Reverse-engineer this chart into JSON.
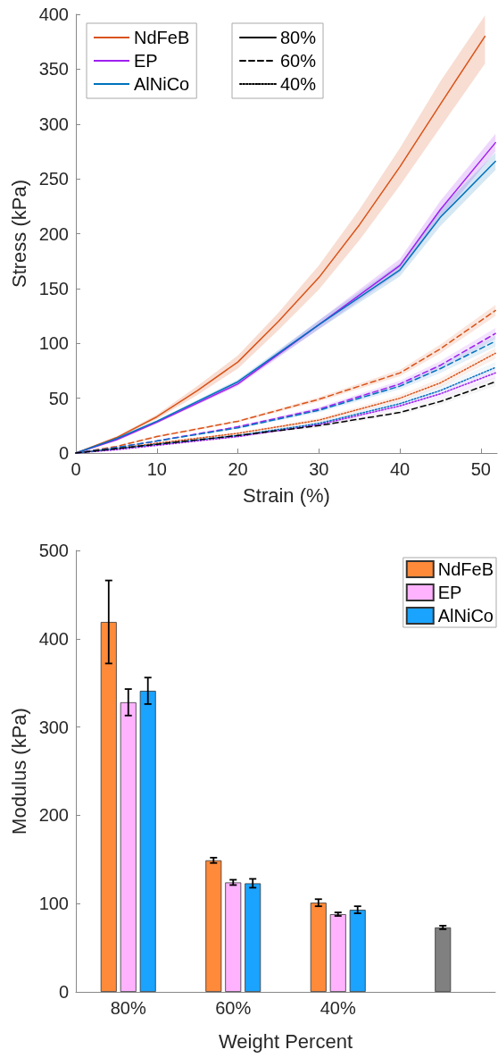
{
  "chart_data": [
    {
      "type": "line",
      "xlabel": "Strain (%)",
      "ylabel": "Stress (kPa)",
      "xlim": [
        0,
        52
      ],
      "xticks": [
        0,
        10,
        20,
        30,
        40,
        50
      ],
      "ylim": [
        0,
        400
      ],
      "yticks": [
        0,
        50,
        100,
        150,
        200,
        250,
        300,
        350,
        400
      ],
      "grid": false,
      "legend": "top left",
      "marker": "none",
      "x": [
        0,
        5,
        10,
        20,
        30,
        40,
        45,
        51.8
      ],
      "series": [
        {
          "name": "NdFeB",
          "color": "#d95319",
          "line_style": "solid",
          "x": [
            0,
            5,
            10,
            15,
            20,
            25,
            30,
            35,
            40,
            45,
            50.5
          ],
          "values": [
            0,
            14,
            33,
            57,
            83,
            120,
            160,
            208,
            261,
            318,
            380
          ],
          "lower": [
            0,
            13,
            31,
            53,
            77,
            112,
            149,
            194,
            244,
            297,
            355
          ],
          "upper": [
            0,
            15,
            35,
            61,
            89,
            128,
            171,
            222,
            278,
            339,
            399
          ]
        },
        {
          "name": "EP",
          "color": "#a020f0",
          "line_style": "solid",
          "values": [
            0,
            12,
            28,
            63,
            117,
            171,
            222,
            283
          ],
          "lower": [
            0,
            11,
            27,
            61,
            113,
            165,
            214,
            275
          ],
          "upper": [
            0,
            13,
            29,
            65,
            121,
            177,
            230,
            291
          ]
        },
        {
          "name": "AlNiCo",
          "color": "#0072bd",
          "line_style": "solid",
          "values": [
            0,
            13,
            29,
            65,
            117,
            167,
            215,
            266
          ],
          "lower": [
            0,
            12,
            28,
            63,
            113,
            161,
            207,
            258
          ],
          "upper": [
            0,
            14,
            30,
            67,
            121,
            173,
            223,
            274
          ]
        },
        {
          "color": "#d95319",
          "line_style": "dashed",
          "values": [
            0,
            6,
            15,
            29,
            49,
            73,
            95,
            130
          ],
          "lower": [
            0,
            5.5,
            14,
            28,
            47,
            70,
            91,
            125
          ],
          "upper": [
            0,
            6.5,
            16,
            30,
            51,
            76,
            99,
            135
          ]
        },
        {
          "color": "#a020f0",
          "line_style": "dashed",
          "values": [
            0,
            5,
            11,
            24,
            40,
            63,
            80,
            109
          ],
          "lower": [
            0,
            4.5,
            10.5,
            22.6,
            38,
            60,
            76,
            104
          ],
          "upper": [
            0,
            5.5,
            11.5,
            24.6,
            42,
            66,
            84,
            114
          ]
        },
        {
          "color": "#0072bd",
          "line_style": "dashed",
          "values": [
            0,
            5,
            11,
            23,
            39,
            61,
            77,
            102
          ],
          "lower": [
            0,
            4.5,
            10.5,
            22,
            37,
            58,
            73,
            97
          ],
          "upper": [
            0,
            5.5,
            11.5,
            24,
            41,
            64,
            81,
            107
          ]
        },
        {
          "color": "#d95319",
          "line_style": "dotted",
          "values": [
            0,
            4,
            9,
            18,
            30,
            50,
            64,
            91
          ],
          "lower": [
            0,
            3.5,
            8.5,
            17,
            28,
            47,
            60,
            86
          ],
          "upper": [
            0,
            4.5,
            9.5,
            19,
            32,
            53,
            68,
            96
          ]
        },
        {
          "color": "#a020f0",
          "line_style": "dotted",
          "values": [
            0,
            3,
            7,
            15,
            26,
            43,
            54,
            73
          ],
          "lower": [
            0,
            3,
            7,
            14,
            24,
            40,
            50,
            68
          ],
          "upper": [
            0,
            4,
            8,
            16,
            28,
            46,
            58,
            78
          ]
        },
        {
          "color": "#0072bd",
          "line_style": "dotted",
          "values": [
            0,
            4,
            8,
            16,
            27,
            45,
            57,
            78
          ],
          "lower": [
            0,
            3.5,
            7.5,
            15,
            25,
            42,
            53,
            73
          ],
          "upper": [
            0,
            4.5,
            8.5,
            17,
            29,
            48,
            61,
            83
          ]
        },
        {
          "color": "#000000",
          "line_style": "dashed",
          "values": [
            0,
            4,
            8,
            16,
            25,
            37,
            47,
            65
          ],
          "lower": [
            0,
            3.5,
            7.5,
            15,
            23,
            35,
            44,
            61
          ],
          "upper": [
            0,
            4.5,
            8.5,
            17,
            27,
            39,
            50,
            69
          ]
        },
        {
          "name": "80%",
          "color": "#000000",
          "line_style": "solid",
          "values": [
            null,
            null,
            null,
            null,
            null,
            null,
            null,
            null
          ]
        },
        {
          "name": "60%",
          "color": "#000000",
          "line_style": "dashed",
          "values": [
            null,
            null,
            null,
            null,
            null,
            null,
            null,
            null
          ]
        },
        {
          "name": "40%",
          "color": "#000000",
          "line_style": "dotted",
          "values": [
            null,
            null,
            null,
            null,
            null,
            null,
            null,
            null
          ]
        }
      ]
    },
    {
      "type": "bar",
      "xlabel": "Weight Percent",
      "ylabel": "Modulus (kPa)",
      "categories": [
        "80%",
        "60%",
        "40%",
        null
      ],
      "ylim": [
        0,
        500
      ],
      "yticks": [
        0,
        100,
        200,
        300,
        400,
        500
      ],
      "grid": false,
      "legend": "top right",
      "series": [
        {
          "name": "NdFeB",
          "color": "#ff8a3a",
          "values": [
            419,
            149,
            101,
            null
          ],
          "errors": [
            47,
            3,
            4,
            null
          ]
        },
        {
          "name": "EP",
          "color": "#ffb3ff",
          "values": [
            328,
            124,
            88,
            null
          ],
          "errors": [
            15,
            3,
            2,
            null
          ]
        },
        {
          "name": "AlNiCo",
          "color": "#1aa3ff",
          "values": [
            341,
            123,
            93,
            null
          ],
          "errors": [
            15,
            5,
            4,
            null
          ]
        },
        {
          "color": "#808080",
          "values": [
            null,
            null,
            null,
            73
          ],
          "errors": [
            null,
            null,
            null,
            2
          ]
        }
      ]
    }
  ]
}
